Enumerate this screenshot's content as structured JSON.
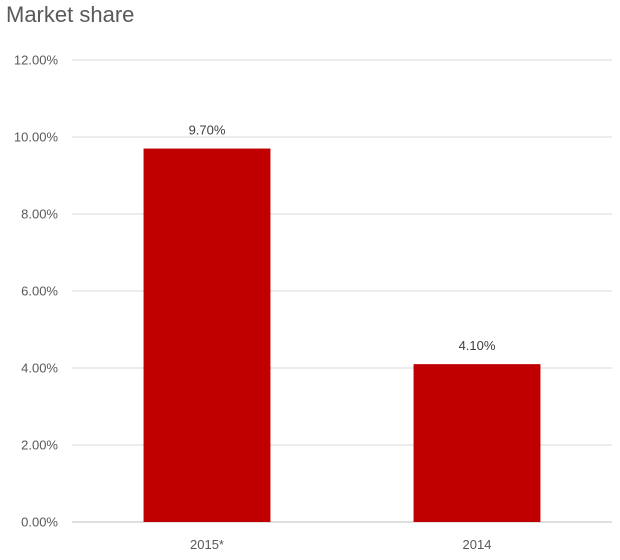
{
  "chart_data": {
    "type": "bar",
    "title": "Market share",
    "xlabel": "",
    "ylabel": "",
    "categories": [
      "2015*",
      "2014"
    ],
    "values": [
      9.7,
      4.1
    ],
    "data_labels": [
      "9.70%",
      "4.10%"
    ],
    "ylim": [
      0,
      12
    ],
    "yticks": [
      0,
      2,
      4,
      6,
      8,
      10,
      12
    ],
    "ytick_labels": [
      "0.00%",
      "2.00%",
      "4.00%",
      "6.00%",
      "8.00%",
      "10.00%",
      "12.00%"
    ],
    "grid": true,
    "legend": "none",
    "bar_color": "#C00000"
  }
}
